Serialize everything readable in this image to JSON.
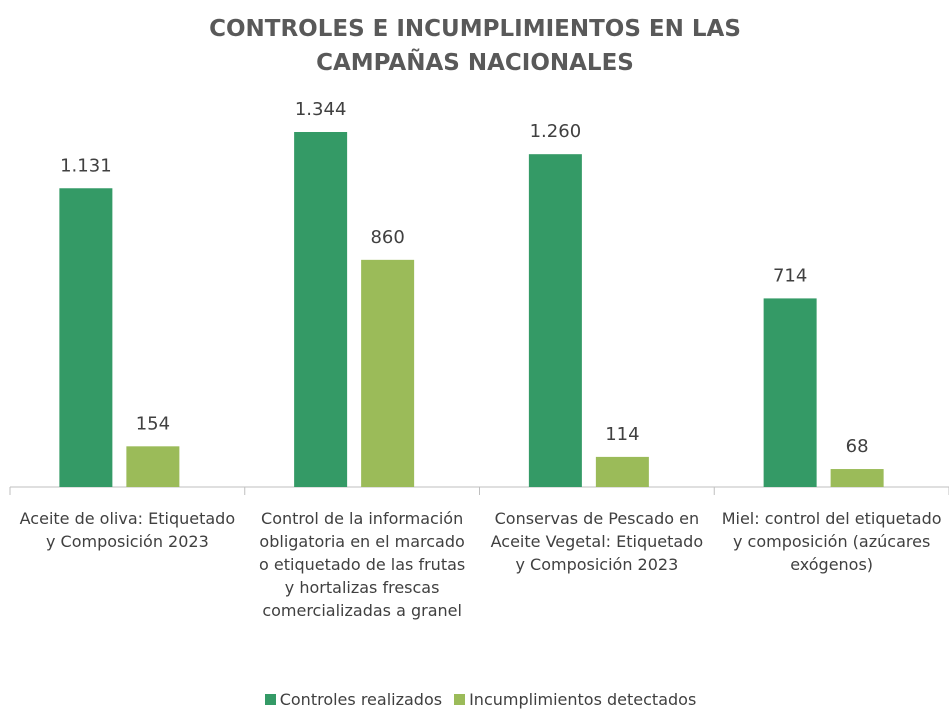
{
  "chart_data": {
    "type": "bar",
    "title": "CONTROLES E INCUMPLIMIENTOS EN LAS CAMPAÑAS NACIONALES",
    "categories": [
      "Aceite de oliva: Etiquetado y Composición 2023",
      "Control de la información obligatoria en el marcado o etiquetado de las frutas y hortalizas frescas comercializadas a granel",
      "Conservas de Pescado en Aceite Vegetal: Etiquetado y Composición 2023",
      "Miel: control del etiquetado y composición (azúcares exógenos)"
    ],
    "series": [
      {
        "name": "Controles realizados",
        "color": "#349a66",
        "values": [
          1131,
          1344,
          1260,
          714
        ],
        "value_labels": [
          "1.131",
          "1.344",
          "1.260",
          "714"
        ]
      },
      {
        "name": "Incumplimientos detectados",
        "color": "#9bbb59",
        "values": [
          154,
          860,
          114,
          68
        ]
      }
    ],
    "legend": "bottom"
  }
}
